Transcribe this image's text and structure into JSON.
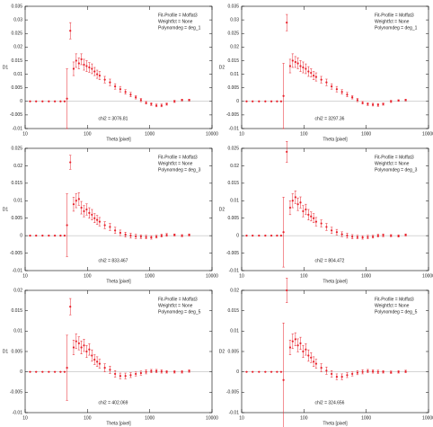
{
  "chart_data": [
    {
      "type": "scatter",
      "ylabel": "D1",
      "xlabel": "Theta [pixel]",
      "log_x": true,
      "color": "#e8202a",
      "annotations": [
        "Fit-Profile = Moffat3",
        "Weightfct = None",
        "Polynomdeg = deg_1"
      ],
      "chi2": "chi2 = 3076.81",
      "xlim": [
        10,
        10000
      ],
      "xticks": [
        10,
        100,
        1000,
        10000
      ],
      "ylim": [
        -0.01,
        0.035
      ],
      "yticks": [
        -0.01,
        -0.005,
        0,
        0.005,
        0.01,
        0.015,
        0.02,
        0.025,
        0.03,
        0.035
      ],
      "x": [
        12,
        15,
        19,
        24,
        30,
        37,
        43,
        47,
        53,
        60,
        66,
        73,
        80,
        88,
        97,
        107,
        118,
        130,
        143,
        157,
        190,
        230,
        278,
        337,
        408,
        494,
        597,
        723,
        875,
        1058,
        1280,
        1549,
        1874,
        2500,
        3300,
        4300
      ],
      "values": [
        0,
        0,
        0,
        0,
        0,
        0,
        0,
        0.001,
        0.026,
        0.012,
        0.015,
        0.014,
        0.0155,
        0.0135,
        0.013,
        0.0125,
        0.012,
        0.011,
        0.01,
        0.0095,
        0.008,
        0.007,
        0.0055,
        0.0045,
        0.0035,
        0.0025,
        0.0015,
        0.0005,
        -0.0005,
        -0.001,
        -0.0015,
        -0.0015,
        -0.001,
        0,
        0.0005,
        0.0005
      ],
      "errors": [
        0,
        0,
        0,
        0,
        0,
        0,
        0,
        0.011,
        0.003,
        0.0025,
        0.0025,
        0.002,
        0.002,
        0.002,
        0.002,
        0.0018,
        0.0018,
        0.0015,
        0.0015,
        0.0015,
        0.0012,
        0.0012,
        0.001,
        0.001,
        0.0008,
        0.0008,
        0.0006,
        0.0006,
        0.0005,
        0.0005,
        0.0005,
        0.0005,
        0.0004,
        0.0004,
        0.0003,
        0.0003
      ]
    },
    {
      "type": "scatter",
      "ylabel": "D2",
      "xlabel": "Theta [pixel]",
      "log_x": true,
      "color": "#e8202a",
      "annotations": [
        "Fit-Profile = Moffat3",
        "Weightfct = None",
        "Polynomdeg = deg_1"
      ],
      "chi2": "chi2 = 3297.36",
      "xlim": [
        10,
        10000
      ],
      "xticks": [
        10,
        100,
        1000,
        10000
      ],
      "ylim": [
        -0.01,
        0.035
      ],
      "yticks": [
        -0.01,
        -0.005,
        0,
        0.005,
        0.01,
        0.015,
        0.02,
        0.025,
        0.03,
        0.035
      ],
      "x": [
        12,
        15,
        19,
        24,
        30,
        37,
        43,
        47,
        53,
        60,
        66,
        73,
        80,
        88,
        97,
        107,
        118,
        130,
        143,
        157,
        190,
        230,
        278,
        337,
        408,
        494,
        597,
        723,
        875,
        1058,
        1280,
        1549,
        1874,
        2500,
        3300,
        4300
      ],
      "values": [
        0,
        0,
        0,
        0,
        0,
        0,
        0,
        0.002,
        0.029,
        0.013,
        0.015,
        0.0145,
        0.014,
        0.013,
        0.0125,
        0.012,
        0.011,
        0.0105,
        0.0095,
        0.009,
        0.008,
        0.007,
        0.0055,
        0.0045,
        0.0035,
        0.0025,
        0.0015,
        0.0005,
        -0.0005,
        -0.001,
        -0.0012,
        -0.0013,
        -0.001,
        0,
        0.0003,
        0.0005
      ],
      "errors": [
        0,
        0,
        0,
        0,
        0,
        0,
        0,
        0.012,
        0.003,
        0.0025,
        0.0025,
        0.002,
        0.002,
        0.002,
        0.002,
        0.0018,
        0.0018,
        0.0015,
        0.0015,
        0.0015,
        0.0012,
        0.0012,
        0.001,
        0.001,
        0.0008,
        0.0008,
        0.0006,
        0.0006,
        0.0005,
        0.0005,
        0.0005,
        0.0005,
        0.0004,
        0.0004,
        0.0003,
        0.0003
      ]
    },
    {
      "type": "scatter",
      "ylabel": "D1",
      "xlabel": "Theta [pixel]",
      "log_x": true,
      "color": "#e8202a",
      "annotations": [
        "Fit-Profile = Moffat3",
        "Weightfct = None",
        "Polynomdeg = deg_3"
      ],
      "chi2": "chi2 = 833.467",
      "xlim": [
        10,
        10000
      ],
      "xticks": [
        10,
        100,
        1000,
        10000
      ],
      "ylim": [
        -0.01,
        0.025
      ],
      "yticks": [
        -0.01,
        -0.005,
        0,
        0.005,
        0.01,
        0.015,
        0.02,
        0.025
      ],
      "x": [
        12,
        15,
        19,
        24,
        30,
        37,
        43,
        47,
        53,
        60,
        66,
        73,
        80,
        88,
        97,
        107,
        118,
        130,
        143,
        157,
        190,
        230,
        278,
        337,
        408,
        494,
        597,
        723,
        875,
        1058,
        1280,
        1549,
        1874,
        2500,
        3300,
        4300
      ],
      "values": [
        0,
        0,
        0,
        0,
        0,
        0,
        0,
        0.003,
        0.021,
        0.009,
        0.01,
        0.0105,
        0.008,
        0.007,
        0.0075,
        0.0065,
        0.006,
        0.005,
        0.0045,
        0.004,
        0.003,
        0.0025,
        0.0015,
        0.0008,
        0.0003,
        0,
        -0.0002,
        -0.0003,
        -0.0004,
        -0.0005,
        -0.0003,
        0,
        0.0002,
        0.0002,
        0,
        0.0002
      ],
      "errors": [
        0,
        0,
        0,
        0,
        0,
        0,
        0,
        0.009,
        0.002,
        0.002,
        0.002,
        0.0018,
        0.0018,
        0.0016,
        0.0016,
        0.0015,
        0.0015,
        0.0013,
        0.0013,
        0.0012,
        0.001,
        0.001,
        0.0009,
        0.0008,
        0.0007,
        0.0007,
        0.0006,
        0.0005,
        0.0005,
        0.0005,
        0.0004,
        0.0004,
        0.0004,
        0.0003,
        0.0003,
        0.0003
      ]
    },
    {
      "type": "scatter",
      "ylabel": "D2",
      "xlabel": "Theta [pixel]",
      "log_x": true,
      "color": "#e8202a",
      "annotations": [
        "Fit-Profile = Moffat3",
        "Weightfct = None",
        "Polynomdeg = deg_3"
      ],
      "chi2": "chi2 = 804.472",
      "xlim": [
        10,
        10000
      ],
      "xticks": [
        10,
        100,
        1000,
        10000
      ],
      "ylim": [
        -0.01,
        0.025
      ],
      "yticks": [
        -0.01,
        -0.005,
        0,
        0.005,
        0.01,
        0.015,
        0.02,
        0.025
      ],
      "x": [
        12,
        15,
        19,
        24,
        30,
        37,
        43,
        47,
        53,
        60,
        66,
        73,
        80,
        88,
        97,
        107,
        118,
        130,
        143,
        157,
        190,
        230,
        278,
        337,
        408,
        494,
        597,
        723,
        875,
        1058,
        1280,
        1549,
        1874,
        2500,
        3300,
        4300
      ],
      "values": [
        0,
        0,
        0,
        0,
        0,
        0,
        0,
        0.001,
        0.024,
        0.008,
        0.01,
        0.011,
        0.009,
        0.0095,
        0.007,
        0.0075,
        0.006,
        0.0055,
        0.005,
        0.004,
        0.0035,
        0.0025,
        0.0015,
        0.001,
        0.0004,
        0,
        -0.0003,
        -0.0004,
        -0.0005,
        -0.0004,
        -0.0003,
        0,
        0.0001,
        0,
        -0.0001,
        0.0002
      ],
      "errors": [
        0,
        0,
        0,
        0,
        0,
        0,
        0,
        0.01,
        0.003,
        0.002,
        0.002,
        0.0018,
        0.0018,
        0.0016,
        0.0016,
        0.0015,
        0.0015,
        0.0013,
        0.0013,
        0.0012,
        0.001,
        0.001,
        0.0009,
        0.0008,
        0.0007,
        0.0007,
        0.0006,
        0.0005,
        0.0005,
        0.0005,
        0.0004,
        0.0004,
        0.0004,
        0.0003,
        0.0003,
        0.0003
      ]
    },
    {
      "type": "scatter",
      "ylabel": "D1",
      "xlabel": "Theta [pixel]",
      "log_x": true,
      "color": "#e8202a",
      "annotations": [
        "Fit-Profile = Moffat3",
        "Weightfct = None",
        "Polynomdeg = deg_5"
      ],
      "chi2": "chi2 = 402.069",
      "xlim": [
        10,
        10000
      ],
      "xticks": [
        10,
        100,
        1000,
        10000
      ],
      "ylim": [
        -0.01,
        0.02
      ],
      "yticks": [
        -0.01,
        -0.005,
        0,
        0.005,
        0.01,
        0.015,
        0.02
      ],
      "x": [
        12,
        15,
        19,
        24,
        30,
        37,
        43,
        47,
        53,
        60,
        66,
        73,
        80,
        88,
        97,
        107,
        118,
        130,
        143,
        157,
        190,
        230,
        278,
        337,
        408,
        494,
        597,
        723,
        875,
        1058,
        1280,
        1549,
        1874,
        2500,
        3300,
        4300
      ],
      "values": [
        0,
        0,
        0,
        0,
        0,
        0,
        0,
        0.001,
        0.016,
        0.006,
        0.0075,
        0.007,
        0.006,
        0.0065,
        0.005,
        0.0055,
        0.004,
        0.003,
        0.0025,
        0.002,
        0.001,
        0.0005,
        -0.0005,
        -0.001,
        -0.001,
        -0.0008,
        -0.0005,
        -0.0003,
        0,
        0.0002,
        0.0002,
        0.0001,
        0,
        0,
        0,
        0.0002
      ],
      "errors": [
        0,
        0,
        0,
        0,
        0,
        0,
        0,
        0.008,
        0.002,
        0.0018,
        0.0018,
        0.0016,
        0.0016,
        0.0015,
        0.0015,
        0.0014,
        0.0014,
        0.0012,
        0.0012,
        0.0011,
        0.001,
        0.0009,
        0.0008,
        0.0007,
        0.0007,
        0.0006,
        0.0005,
        0.0005,
        0.0005,
        0.0004,
        0.0004,
        0.0004,
        0.0003,
        0.0003,
        0.0003,
        0.0003
      ]
    },
    {
      "type": "scatter",
      "ylabel": "D2",
      "xlabel": "Theta [pixel]",
      "log_x": true,
      "color": "#e8202a",
      "annotations": [
        "Fit-Profile = Moffat3",
        "Weightfct = None",
        "Polynomdeg = deg_5"
      ],
      "chi2": "chi2 = 324.656",
      "xlim": [
        10,
        10000
      ],
      "xticks": [
        10,
        100,
        1000,
        10000
      ],
      "ylim": [
        -0.01,
        0.02
      ],
      "yticks": [
        -0.01,
        -0.005,
        0,
        0.005,
        0.01,
        0.015,
        0.02
      ],
      "x": [
        12,
        15,
        19,
        24,
        30,
        37,
        43,
        47,
        53,
        60,
        66,
        73,
        80,
        88,
        97,
        107,
        118,
        130,
        143,
        157,
        190,
        230,
        278,
        337,
        408,
        494,
        597,
        723,
        875,
        1058,
        1280,
        1549,
        1874,
        2500,
        3300,
        4300
      ],
      "values": [
        0,
        0,
        0,
        0,
        0,
        0,
        0,
        -0.002,
        0.02,
        0.006,
        0.0075,
        0.008,
        0.0065,
        0.007,
        0.005,
        0.0055,
        0.004,
        0.0035,
        0.0025,
        0.002,
        0.001,
        0.0003,
        -0.0005,
        -0.0012,
        -0.0012,
        -0.0008,
        -0.0005,
        -0.0002,
        0,
        0.0002,
        0.0001,
        0,
        0,
        -0.0001,
        0,
        0.0001
      ],
      "errors": [
        0,
        0,
        0,
        0,
        0,
        0,
        0,
        0.014,
        0.003,
        0.0018,
        0.0018,
        0.0016,
        0.0016,
        0.0015,
        0.0015,
        0.0014,
        0.0014,
        0.0012,
        0.0012,
        0.0011,
        0.001,
        0.0009,
        0.0008,
        0.0007,
        0.0007,
        0.0006,
        0.0005,
        0.0005,
        0.0005,
        0.0004,
        0.0004,
        0.0004,
        0.0003,
        0.0003,
        0.0003,
        0.0003
      ]
    }
  ]
}
